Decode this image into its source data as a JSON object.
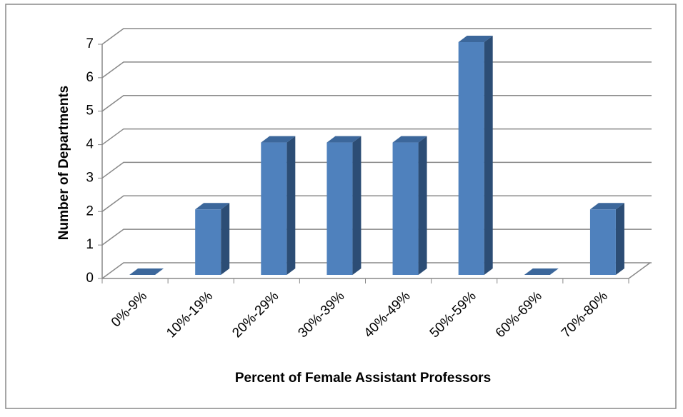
{
  "chart_data": {
    "type": "bar3d",
    "x_label": "Percent of Female Assistant  Professors",
    "y_label": "Number of Departments",
    "categories": [
      "0%-9%",
      "10%-19%",
      "20%-29%",
      "30%-39%",
      "40%-49%",
      "50%-59%",
      "60%-69%",
      "70%-80%"
    ],
    "values": [
      0,
      2,
      4,
      4,
      4,
      7,
      0,
      2
    ],
    "color": "#4f81bd",
    "ylim": [
      0,
      7
    ],
    "yticks": [
      0,
      1,
      2,
      3,
      4,
      5,
      6,
      7
    ],
    "grid": true
  }
}
